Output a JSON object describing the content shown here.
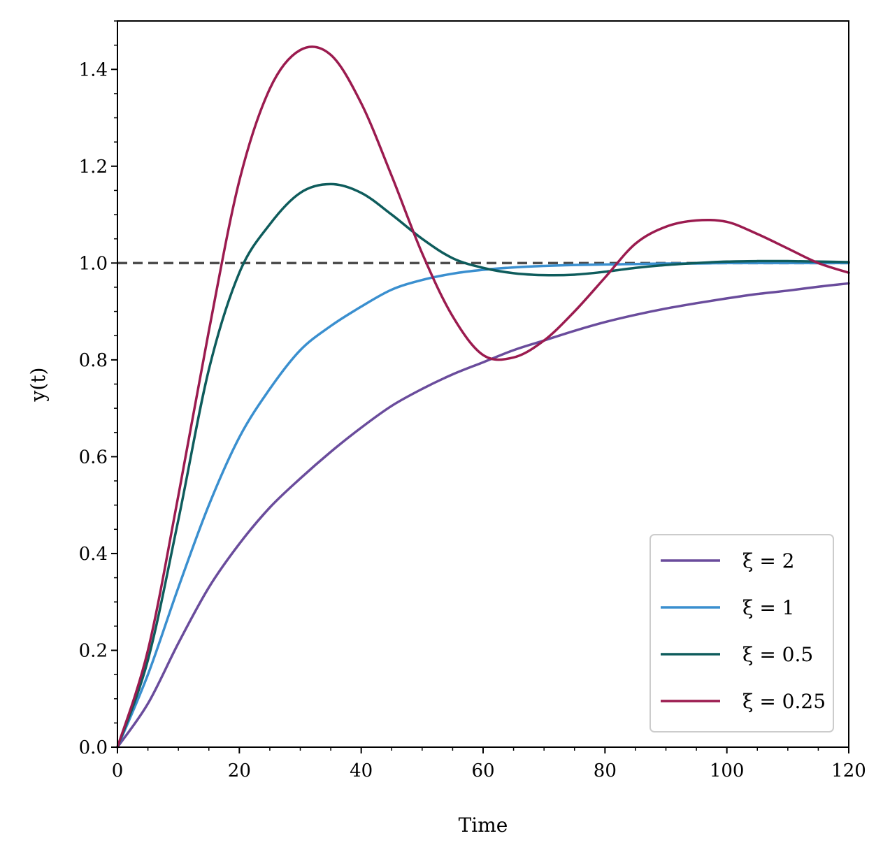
{
  "chart_data": {
    "type": "line",
    "title": "",
    "xlabel": "Time",
    "ylabel": "y(t)",
    "xlim": [
      0,
      120
    ],
    "ylim": [
      0,
      1.5
    ],
    "xticks": [
      0,
      20,
      40,
      60,
      80,
      100,
      120
    ],
    "xtick_labels": [
      "0",
      "20",
      "40",
      "60",
      "80",
      "100",
      "120"
    ],
    "yticks": [
      0,
      0.2,
      0.4,
      0.6,
      0.8,
      1.0,
      1.2,
      1.4
    ],
    "ytick_labels": [
      "0.0",
      "0.2",
      "0.4",
      "0.6",
      "0.8",
      "1.0",
      "1.2",
      "1.4"
    ],
    "grid": false,
    "legend_position": "lower-right",
    "reference_line": {
      "y": 1.0,
      "style": "dashed",
      "color": "#4d4d4d"
    },
    "series": [
      {
        "name": "ξ = 2",
        "color": "#6a4c9c",
        "x": [
          0,
          5,
          10,
          15,
          20,
          25,
          30,
          35,
          40,
          45,
          50,
          55,
          60,
          65,
          70,
          75,
          80,
          85,
          90,
          95,
          100,
          105,
          110,
          115,
          120
        ],
        "y": [
          0,
          0.09,
          0.215,
          0.33,
          0.42,
          0.495,
          0.555,
          0.61,
          0.66,
          0.705,
          0.74,
          0.77,
          0.795,
          0.82,
          0.84,
          0.86,
          0.878,
          0.893,
          0.906,
          0.917,
          0.927,
          0.936,
          0.943,
          0.951,
          0.958
        ]
      },
      {
        "name": "ξ = 1",
        "color": "#3a8fcf",
        "x": [
          0,
          5,
          10,
          15,
          20,
          25,
          30,
          35,
          40,
          45,
          50,
          55,
          60,
          65,
          70,
          75,
          80,
          85,
          90,
          95,
          100,
          105,
          110,
          115,
          120
        ],
        "y": [
          0,
          0.15,
          0.33,
          0.5,
          0.64,
          0.74,
          0.82,
          0.87,
          0.91,
          0.945,
          0.965,
          0.978,
          0.986,
          0.991,
          0.994,
          0.996,
          0.997,
          0.998,
          0.999,
          0.999,
          1.0,
          1.0,
          1.0,
          1.0,
          1.0
        ]
      },
      {
        "name": "ξ = 0.5",
        "color": "#0e5c5c",
        "x": [
          0,
          5,
          10,
          15,
          20,
          25,
          30,
          35,
          40,
          45,
          50,
          55,
          60,
          65,
          70,
          75,
          80,
          85,
          90,
          95,
          100,
          105,
          110,
          115,
          120
        ],
        "y": [
          0,
          0.18,
          0.47,
          0.78,
          0.98,
          1.08,
          1.145,
          1.163,
          1.145,
          1.1,
          1.05,
          1.01,
          0.99,
          0.979,
          0.975,
          0.976,
          0.982,
          0.99,
          0.996,
          1.0,
          1.003,
          1.004,
          1.004,
          1.003,
          1.002
        ]
      },
      {
        "name": "ξ = 0.25",
        "color": "#9b1b4f",
        "x": [
          0,
          5,
          10,
          15,
          20,
          25,
          30,
          35,
          40,
          45,
          50,
          55,
          60,
          65,
          70,
          75,
          80,
          85,
          90,
          95,
          100,
          105,
          110,
          115,
          120
        ],
        "y": [
          0,
          0.2,
          0.52,
          0.86,
          1.17,
          1.36,
          1.44,
          1.43,
          1.33,
          1.18,
          1.02,
          0.89,
          0.81,
          0.805,
          0.84,
          0.9,
          0.97,
          1.04,
          1.075,
          1.088,
          1.085,
          1.06,
          1.03,
          1.0,
          0.98
        ]
      }
    ]
  }
}
